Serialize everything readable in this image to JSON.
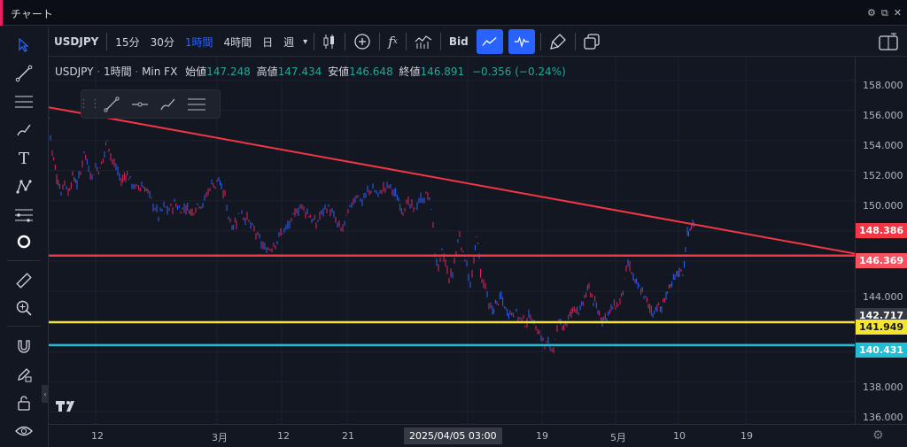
{
  "window": {
    "title": "チャート"
  },
  "toolbar": {
    "symbol": "USDJPY",
    "intervals": [
      "15分",
      "30分",
      "1時間",
      "4時間",
      "日",
      "週"
    ],
    "active_interval": "1時間",
    "price_source": "Bid"
  },
  "legend": {
    "symbol": "USDJPY",
    "interval": "1時間",
    "source": "Min FX",
    "open_label": "始値",
    "open": "147.248",
    "high_label": "高値",
    "high": "147.434",
    "low_label": "安値",
    "low": "146.648",
    "close_label": "終値",
    "close": "146.891",
    "change": "−0.356 (−0.24%)"
  },
  "price_axis": {
    "ticks": [
      "158.000",
      "156.000",
      "154.000",
      "152.000",
      "150.000",
      "144.000",
      "138.000",
      "136.000"
    ],
    "tags": [
      {
        "value": "148.386",
        "color": "#f23645"
      },
      {
        "value": "146.369",
        "color": "#f7525f"
      },
      {
        "value": "142.717",
        "color": "#363a45"
      },
      {
        "value": "141.949",
        "color": "#f5e52f"
      },
      {
        "value": "140.431",
        "color": "#22bcd4"
      }
    ]
  },
  "time_axis": {
    "ticks": [
      "12",
      "3月",
      "12",
      "21",
      "19",
      "5月",
      "10",
      "19"
    ],
    "cursor": "2025/04/05   03:00"
  },
  "chart_data": {
    "type": "line",
    "ylim": [
      135.2,
      159.5
    ],
    "horizontal_lines": [
      {
        "value": 146.369,
        "color": "#f23645"
      },
      {
        "value": 141.949,
        "color": "#f5e52f"
      },
      {
        "value": 140.431,
        "color": "#22bcd4"
      }
    ],
    "trendline": {
      "start": 156.2,
      "end": 146.5,
      "color": "#f23645"
    },
    "path": [
      [
        0,
        155.5
      ],
      [
        4,
        153.2
      ],
      [
        9,
        151.6
      ],
      [
        14,
        150.6
      ],
      [
        18,
        151.4
      ],
      [
        22,
        150.5
      ],
      [
        27,
        151.6
      ],
      [
        32,
        151.2
      ],
      [
        36,
        151.8
      ],
      [
        40,
        153.4
      ],
      [
        45,
        152.2
      ],
      [
        49,
        151.6
      ],
      [
        53,
        152.2
      ],
      [
        58,
        152.0
      ],
      [
        63,
        153.2
      ],
      [
        66,
        154.2
      ],
      [
        70,
        153.0
      ],
      [
        74,
        152.4
      ],
      [
        78,
        152.0
      ],
      [
        82,
        151.2
      ],
      [
        87,
        151.8
      ],
      [
        92,
        151.4
      ],
      [
        98,
        150.8
      ],
      [
        105,
        151.0
      ],
      [
        112,
        150.6
      ],
      [
        118,
        149.8
      ],
      [
        124,
        149.0
      ],
      [
        130,
        149.6
      ],
      [
        136,
        149.4
      ],
      [
        142,
        149.8
      ],
      [
        149,
        149.4
      ],
      [
        155,
        149.6
      ],
      [
        162,
        149.2
      ],
      [
        168,
        149.8
      ],
      [
        174,
        149.8
      ],
      [
        180,
        150.6
      ],
      [
        184,
        151.2
      ],
      [
        188,
        151.0
      ],
      [
        192,
        151.6
      ],
      [
        195,
        150.6
      ],
      [
        199,
        150.4
      ],
      [
        203,
        149.0
      ],
      [
        207,
        148.4
      ],
      [
        212,
        148.6
      ],
      [
        216,
        149.6
      ],
      [
        220,
        149.0
      ],
      [
        226,
        148.6
      ],
      [
        232,
        148.0
      ],
      [
        238,
        147.4
      ],
      [
        244,
        146.8
      ],
      [
        250,
        146.8
      ],
      [
        256,
        147.2
      ],
      [
        262,
        147.8
      ],
      [
        268,
        148.2
      ],
      [
        274,
        148.6
      ],
      [
        280,
        149.4
      ],
      [
        286,
        149.6
      ],
      [
        292,
        149.2
      ],
      [
        297,
        148.8
      ],
      [
        302,
        148.4
      ],
      [
        306,
        149.0
      ],
      [
        312,
        149.6
      ],
      [
        318,
        149.4
      ],
      [
        324,
        148.6
      ],
      [
        330,
        148.0
      ],
      [
        336,
        148.8
      ],
      [
        342,
        149.8
      ],
      [
        348,
        150.4
      ],
      [
        354,
        150.0
      ],
      [
        360,
        150.6
      ],
      [
        366,
        150.8
      ],
      [
        372,
        150.4
      ],
      [
        378,
        150.8
      ],
      [
        384,
        151.0
      ],
      [
        390,
        150.6
      ],
      [
        395,
        150.0
      ],
      [
        400,
        149.4
      ],
      [
        406,
        149.8
      ],
      [
        412,
        149.4
      ],
      [
        418,
        150.0
      ],
      [
        424,
        150.2
      ],
      [
        428,
        150.4
      ],
      [
        432,
        149.6
      ],
      [
        436,
        146.6
      ],
      [
        440,
        145.4
      ],
      [
        444,
        146.6
      ],
      [
        448,
        145.8
      ],
      [
        452,
        144.8
      ],
      [
        456,
        145.2
      ],
      [
        460,
        146.6
      ],
      [
        464,
        147.8
      ],
      [
        468,
        146.4
      ],
      [
        472,
        146.0
      ],
      [
        476,
        144.2
      ],
      [
        480,
        145.8
      ],
      [
        483,
        147.8
      ],
      [
        486,
        146.2
      ],
      [
        489,
        144.6
      ],
      [
        493,
        144.4
      ],
      [
        497,
        142.8
      ],
      [
        501,
        142.8
      ],
      [
        506,
        143.2
      ],
      [
        511,
        143.6
      ],
      [
        516,
        142.8
      ],
      [
        521,
        142.6
      ],
      [
        526,
        142.6
      ],
      [
        532,
        142.2
      ],
      [
        538,
        141.9
      ],
      [
        544,
        142.4
      ],
      [
        550,
        141.6
      ],
      [
        556,
        141.0
      ],
      [
        560,
        140.4
      ],
      [
        564,
        140.6
      ],
      [
        568,
        140.2
      ],
      [
        572,
        140.6
      ],
      [
        576,
        141.8
      ],
      [
        580,
        141.8
      ],
      [
        585,
        141.9
      ],
      [
        590,
        142.6
      ],
      [
        595,
        143.0
      ],
      [
        600,
        142.6
      ],
      [
        605,
        143.6
      ],
      [
        610,
        144.2
      ],
      [
        615,
        143.4
      ],
      [
        620,
        142.6
      ],
      [
        625,
        142.2
      ],
      [
        630,
        142.4
      ],
      [
        635,
        142.8
      ],
      [
        640,
        143.0
      ],
      [
        645,
        143.2
      ],
      [
        650,
        144.6
      ],
      [
        654,
        145.8
      ],
      [
        658,
        145.2
      ],
      [
        662,
        144.6
      ],
      [
        667,
        144.2
      ],
      [
        672,
        143.8
      ],
      [
        677,
        143.0
      ],
      [
        682,
        142.6
      ],
      [
        687,
        143.0
      ],
      [
        692,
        142.8
      ],
      [
        697,
        143.8
      ],
      [
        702,
        144.2
      ],
      [
        707,
        145.0
      ],
      [
        712,
        145.4
      ],
      [
        716,
        145.2
      ],
      [
        719,
        146.8
      ],
      [
        721,
        147.8
      ],
      [
        724,
        148.1
      ],
      [
        727,
        148.4
      ],
      [
        730,
        148.0
      ]
    ]
  }
}
